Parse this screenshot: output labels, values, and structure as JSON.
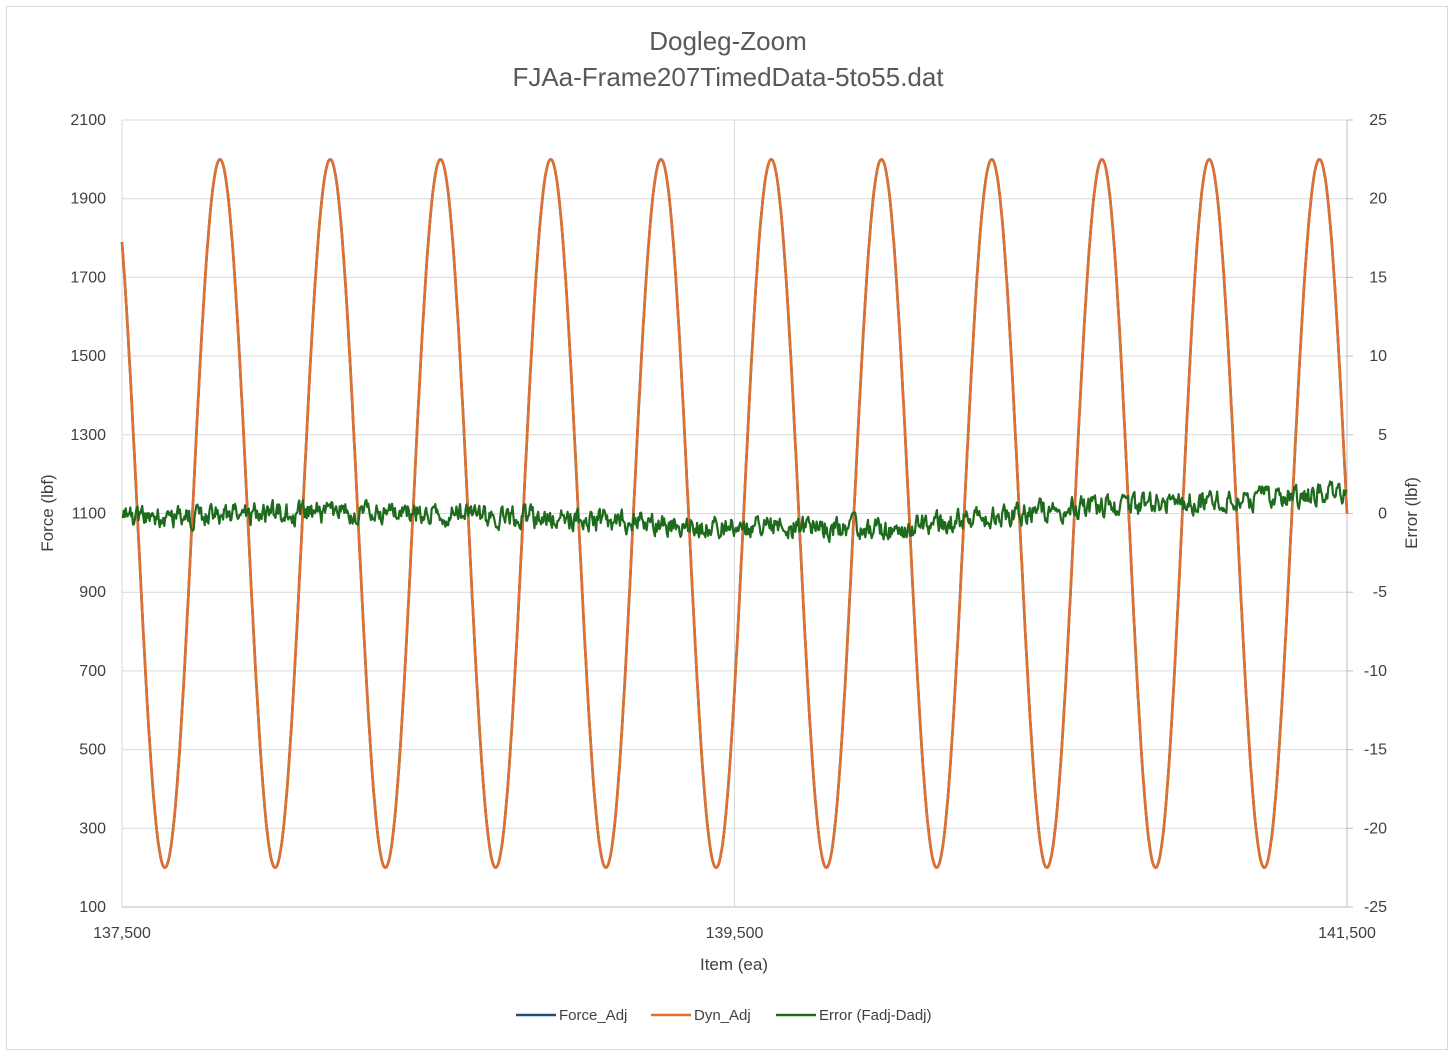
{
  "chart_data": {
    "type": "line",
    "title": "Dogleg-Zoom",
    "subtitle": "FJAa-Frame207TimedData-5to55.dat",
    "xlabel": "Item (ea)",
    "ylabel": "Force (lbf)",
    "y2label": "Error (lbf)",
    "xlim": [
      137500,
      141500
    ],
    "ylim": [
      100,
      2100
    ],
    "y2lim": [
      -25,
      25
    ],
    "x_ticks": [
      "137,500",
      "139,500",
      "141,500"
    ],
    "x_tick_values": [
      137500,
      139500,
      141500
    ],
    "y_ticks": [
      "100",
      "300",
      "500",
      "700",
      "900",
      "1100",
      "1300",
      "1500",
      "1700",
      "1900",
      "2100"
    ],
    "y2_ticks": [
      "-25",
      "-20",
      "-15",
      "-10",
      "-5",
      "0",
      "5",
      "10",
      "15",
      "20",
      "25"
    ],
    "grid": true,
    "legend_position": "bottom",
    "series": [
      {
        "name": "Force_Adj",
        "axis": "left",
        "color": "#1f4e79",
        "description": "sinusoid overlapping Dyn_Adj",
        "amplitude": 900,
        "offset": 1100,
        "period": 360,
        "peaks_x": [
          137820,
          138180,
          138540,
          138900,
          139260,
          139620,
          139980,
          140340,
          140700,
          141050,
          141410
        ],
        "peak_value": 2000,
        "trough_value": 200
      },
      {
        "name": "Dyn_Adj",
        "axis": "left",
        "color": "#e07030",
        "amplitude": 900,
        "offset": 1100,
        "period": 360,
        "peaks_x": [
          137820,
          138180,
          138540,
          138900,
          139260,
          139620,
          139980,
          140340,
          140700,
          141050,
          141410
        ],
        "peak_value": 2000,
        "trough_value": 200
      },
      {
        "name": "Error (Fadj-Dadj)",
        "axis": "right",
        "color": "#1e6b1e",
        "trend_x": [
          137500,
          138000,
          138500,
          139000,
          139500,
          140000,
          140500,
          141000,
          141500
        ],
        "trend_y": [
          -0.3,
          0.0,
          0.0,
          -0.4,
          -0.8,
          -1.0,
          0.2,
          0.8,
          1.3
        ],
        "noise_amplitude": 0.8
      }
    ]
  }
}
